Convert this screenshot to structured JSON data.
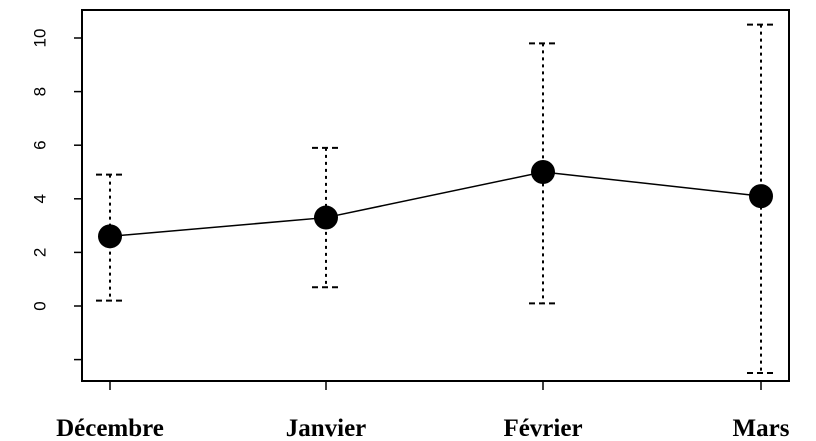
{
  "chart_data": {
    "type": "line",
    "title": "",
    "xlabel": "",
    "ylabel": "",
    "categories": [
      "Décembre",
      "Janvier",
      "Février",
      "Mars"
    ],
    "series": [
      {
        "values": [
          2.6,
          3.3,
          5.0,
          4.1
        ],
        "error_low": [
          0.2,
          0.7,
          0.1,
          -2.5
        ],
        "error_high": [
          4.9,
          5.9,
          9.8,
          10.5
        ]
      }
    ],
    "y_ticks": [
      0,
      2,
      4,
      6,
      8,
      10
    ],
    "ylim": [
      -3,
      11
    ],
    "grid": false,
    "error_bar_style": "dotted",
    "marker": "filled-circle",
    "colors": {
      "line": "#000000",
      "marker": "#000000",
      "axis": "#000000"
    }
  }
}
